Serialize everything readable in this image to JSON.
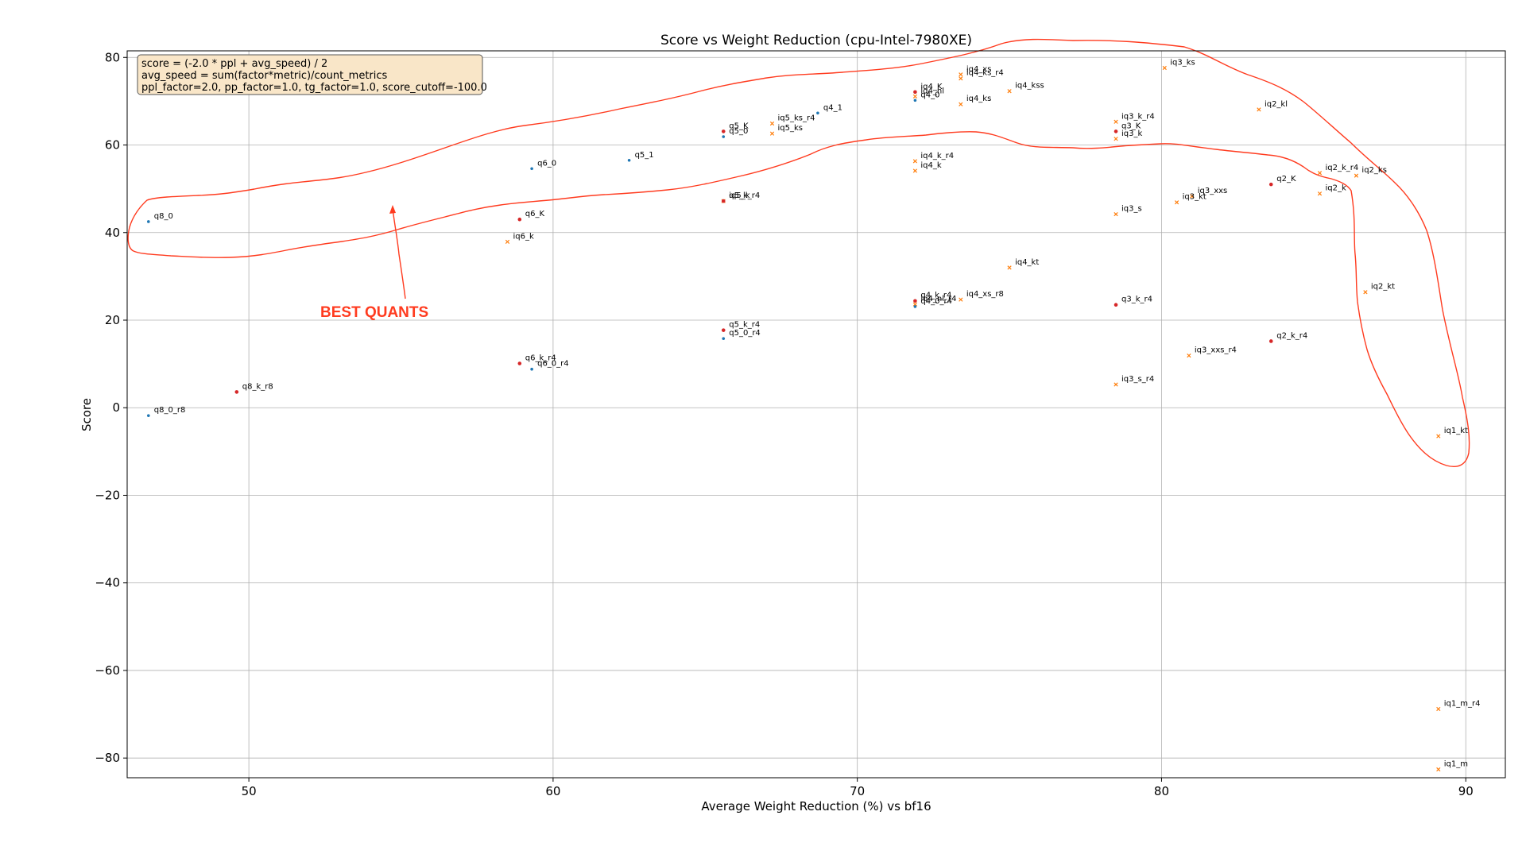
{
  "chart_data": {
    "type": "scatter",
    "title": "Score vs Weight Reduction (cpu-Intel-7980XE)",
    "xlabel": "Average Weight Reduction (%) vs bf16",
    "ylabel": "Score",
    "xlim": [
      46,
      91.3
    ],
    "ylim": [
      -84.5,
      81.5
    ],
    "xticks": [
      50,
      60,
      70,
      80,
      90
    ],
    "yticks": [
      80,
      60,
      40,
      20,
      0,
      -20,
      -40,
      -60,
      -80
    ],
    "grid": true,
    "info_box": {
      "lines": [
        "score = (-2.0 * ppl + avg_speed) / 2",
        "avg_speed = sum(factor*metric)/count_metrics",
        "ppl_factor=2.0, pp_factor=1.0, tg_factor=1.0, score_cutoff=-100.0"
      ],
      "placement": "top-left"
    },
    "callout": {
      "text": "BEST QUANTS"
    },
    "colors": {
      "blue": "#1f77b4",
      "red": "#d62728",
      "orange": "#ff7f0e",
      "annotation": "#ff3b1f"
    },
    "points": [
      {
        "label": "q8_0",
        "x": 46.7,
        "y": 42.5,
        "color": "blue",
        "marker": "dot"
      },
      {
        "label": "q8_0_r8",
        "x": 46.7,
        "y": -1.8,
        "color": "blue",
        "marker": "dot"
      },
      {
        "label": "q8_k_r8",
        "x": 49.6,
        "y": 3.6,
        "color": "red",
        "marker": "dot"
      },
      {
        "label": "iq6_k",
        "x": 58.5,
        "y": 37.9,
        "color": "orange",
        "marker": "x"
      },
      {
        "label": "q6_K",
        "x": 58.9,
        "y": 43.0,
        "color": "red",
        "marker": "dot"
      },
      {
        "label": "q6_0",
        "x": 59.3,
        "y": 54.6,
        "color": "blue",
        "marker": "dot"
      },
      {
        "label": "q6_k_r4",
        "x": 58.9,
        "y": 10.1,
        "color": "red",
        "marker": "dot"
      },
      {
        "label": "q6_0_r4",
        "x": 59.3,
        "y": 8.8,
        "color": "blue",
        "marker": "dot"
      },
      {
        "label": "q5_1",
        "x": 62.5,
        "y": 56.5,
        "color": "blue",
        "marker": "dot"
      },
      {
        "label": "q5_K",
        "x": 65.6,
        "y": 63.1,
        "color": "red",
        "marker": "dot"
      },
      {
        "label": "q5_0",
        "x": 65.6,
        "y": 61.9,
        "color": "blue",
        "marker": "dot"
      },
      {
        "label": "iq5_k",
        "x": 65.6,
        "y": 47.2,
        "color": "orange",
        "marker": "x"
      },
      {
        "label": "q5_k_r4",
        "x": 65.6,
        "y": 47.2,
        "color": "red",
        "marker": "dot"
      },
      {
        "label": "q5_k_r4",
        "x": 65.6,
        "y": 17.7,
        "color": "red",
        "marker": "dot"
      },
      {
        "label": "q5_0_r4",
        "x": 65.6,
        "y": 15.8,
        "color": "blue",
        "marker": "dot"
      },
      {
        "label": "iq5_ks_r4",
        "x": 67.2,
        "y": 64.9,
        "color": "orange",
        "marker": "x"
      },
      {
        "label": "iq5_ks",
        "x": 67.2,
        "y": 62.6,
        "color": "orange",
        "marker": "x"
      },
      {
        "label": "q4_1",
        "x": 68.7,
        "y": 67.3,
        "color": "blue",
        "marker": "dot"
      },
      {
        "label": "iq4_K",
        "x": 71.9,
        "y": 72.1,
        "color": "red",
        "marker": "dot"
      },
      {
        "label": "iq4_nl",
        "x": 71.9,
        "y": 71.1,
        "color": "orange",
        "marker": "x"
      },
      {
        "label": "q4_0",
        "x": 71.9,
        "y": 70.2,
        "color": "blue",
        "marker": "dot"
      },
      {
        "label": "iq4_k_r4",
        "x": 71.9,
        "y": 56.3,
        "color": "orange",
        "marker": "x"
      },
      {
        "label": "iq4_k",
        "x": 71.9,
        "y": 54.1,
        "color": "orange",
        "marker": "x"
      },
      {
        "label": "q4_k_r4",
        "x": 71.9,
        "y": 24.4,
        "color": "red",
        "marker": "dot"
      },
      {
        "label": "iq4_nl_r4",
        "x": 71.9,
        "y": 23.6,
        "color": "orange",
        "marker": "x"
      },
      {
        "label": "q4_0_r4",
        "x": 71.9,
        "y": 23.1,
        "color": "blue",
        "marker": "dot"
      },
      {
        "label": "iq4_xs",
        "x": 73.4,
        "y": 76.1,
        "color": "orange",
        "marker": "x"
      },
      {
        "label": "iq4_ks_r4",
        "x": 73.4,
        "y": 75.2,
        "color": "orange",
        "marker": "x"
      },
      {
        "label": "iq4_ks",
        "x": 73.4,
        "y": 69.3,
        "color": "orange",
        "marker": "x"
      },
      {
        "label": "iq4_xs_r8",
        "x": 73.4,
        "y": 24.7,
        "color": "orange",
        "marker": "x"
      },
      {
        "label": "iq4_kss",
        "x": 75.0,
        "y": 72.3,
        "color": "orange",
        "marker": "x"
      },
      {
        "label": "iq4_kt",
        "x": 75.0,
        "y": 32.0,
        "color": "orange",
        "marker": "x"
      },
      {
        "label": "iq3_k_r4",
        "x": 78.5,
        "y": 65.3,
        "color": "orange",
        "marker": "x"
      },
      {
        "label": "q3_K",
        "x": 78.5,
        "y": 63.1,
        "color": "red",
        "marker": "dot"
      },
      {
        "label": "iq3_k",
        "x": 78.5,
        "y": 61.4,
        "color": "orange",
        "marker": "x"
      },
      {
        "label": "iq3_s",
        "x": 78.5,
        "y": 44.2,
        "color": "orange",
        "marker": "x"
      },
      {
        "label": "q3_k_r4",
        "x": 78.5,
        "y": 23.5,
        "color": "red",
        "marker": "dot"
      },
      {
        "label": "iq3_s_r4",
        "x": 78.5,
        "y": 5.3,
        "color": "orange",
        "marker": "x"
      },
      {
        "label": "iq3_ks",
        "x": 80.1,
        "y": 77.6,
        "color": "orange",
        "marker": "x"
      },
      {
        "label": "iq3_kt",
        "x": 80.5,
        "y": 46.9,
        "color": "orange",
        "marker": "x"
      },
      {
        "label": "iq3_xxs",
        "x": 81.0,
        "y": 48.3,
        "color": "orange",
        "marker": "x"
      },
      {
        "label": "iq3_xxs_r4",
        "x": 80.9,
        "y": 11.9,
        "color": "orange",
        "marker": "x"
      },
      {
        "label": "iq2_kl",
        "x": 83.2,
        "y": 68.1,
        "color": "orange",
        "marker": "x"
      },
      {
        "label": "q2_K",
        "x": 83.6,
        "y": 51.0,
        "color": "red",
        "marker": "dot"
      },
      {
        "label": "q2_k_r4",
        "x": 83.6,
        "y": 15.2,
        "color": "red",
        "marker": "dot"
      },
      {
        "label": "iq2_k_r4",
        "x": 85.2,
        "y": 53.6,
        "color": "orange",
        "marker": "x"
      },
      {
        "label": "iq2_k",
        "x": 85.2,
        "y": 48.9,
        "color": "orange",
        "marker": "x"
      },
      {
        "label": "iq2_ks",
        "x": 86.4,
        "y": 53.0,
        "color": "orange",
        "marker": "x"
      },
      {
        "label": "iq2_kt",
        "x": 86.7,
        "y": 26.4,
        "color": "orange",
        "marker": "x"
      },
      {
        "label": "iq1_kt",
        "x": 89.1,
        "y": -6.5,
        "color": "orange",
        "marker": "x"
      },
      {
        "label": "iq1_m_r4",
        "x": 89.1,
        "y": -68.8,
        "color": "orange",
        "marker": "x"
      },
      {
        "label": "iq1_m",
        "x": 89.1,
        "y": -82.6,
        "color": "orange",
        "marker": "x"
      }
    ]
  }
}
